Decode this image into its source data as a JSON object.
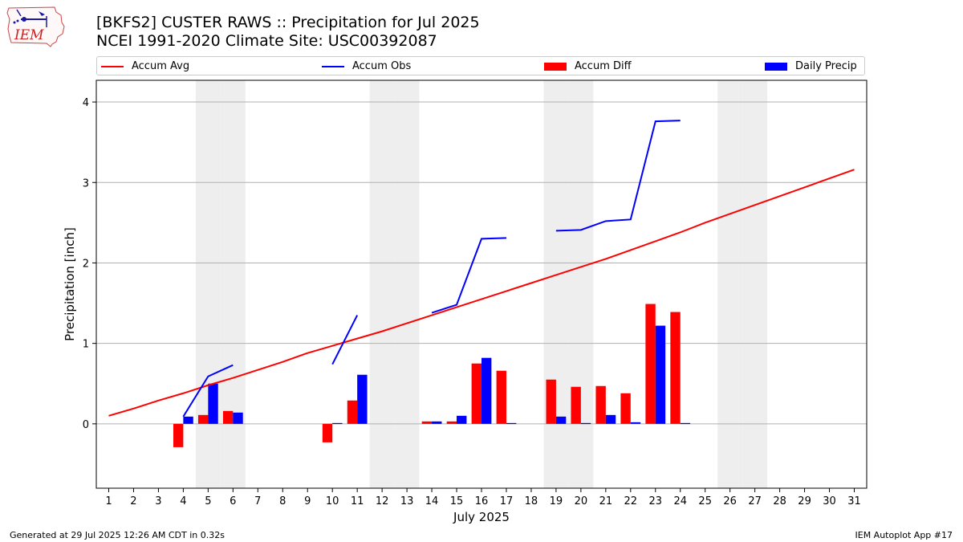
{
  "title_line1": "[BKFS2] CUSTER RAWS :: Precipitation for Jul 2025",
  "title_line2": "NCEI 1991-2020 Climate Site: USC00392087",
  "logo_text": "IEM",
  "legend": {
    "accum_avg": "Accum Avg",
    "accum_obs": "Accum Obs",
    "accum_diff": "Accum Diff",
    "daily_precip": "Daily Precip"
  },
  "colors": {
    "accum_avg": "#ff0000",
    "accum_obs": "#0000ff",
    "accum_diff": "#ff0000",
    "daily_precip": "#0000ff",
    "weekend_shade": "#eeeeee",
    "grid": "#b0b0b0"
  },
  "footer": {
    "left": "Generated at 29 Jul 2025 12:26 AM CDT in 0.32s",
    "right": "IEM Autoplot App #17"
  },
  "chart_data": {
    "type": "bar",
    "title": "[BKFS2] CUSTER RAWS :: Precipitation for Jul 2025",
    "xlabel": "July 2025",
    "ylabel": "Precipitation [inch]",
    "xlim": [
      0.5,
      31.5
    ],
    "ylim": [
      -0.8,
      4.27
    ],
    "yticks": [
      0,
      1,
      2,
      3,
      4
    ],
    "categories": [
      "1",
      "2",
      "3",
      "4",
      "5",
      "6",
      "7",
      "8",
      "9",
      "10",
      "11",
      "12",
      "13",
      "14",
      "15",
      "16",
      "17",
      "18",
      "19",
      "20",
      "21",
      "22",
      "23",
      "24",
      "25",
      "26",
      "27",
      "28",
      "29",
      "30",
      "31"
    ],
    "weekend_days": [
      5,
      6,
      12,
      13,
      19,
      20,
      26,
      27
    ],
    "series": [
      {
        "name": "Accum Avg",
        "type": "line",
        "x": [
          1,
          2,
          3,
          4,
          5,
          6,
          7,
          8,
          9,
          10,
          11,
          12,
          13,
          14,
          15,
          16,
          17,
          18,
          19,
          20,
          21,
          22,
          23,
          24,
          25,
          26,
          27,
          28,
          29,
          30,
          31
        ],
        "values": [
          0.1,
          0.19,
          0.29,
          0.38,
          0.48,
          0.57,
          0.67,
          0.77,
          0.88,
          0.97,
          1.06,
          1.15,
          1.25,
          1.35,
          1.45,
          1.55,
          1.65,
          1.75,
          1.85,
          1.95,
          2.05,
          2.16,
          2.27,
          2.38,
          2.5,
          2.61,
          2.72,
          2.83,
          2.94,
          3.05,
          3.16
        ]
      },
      {
        "name": "Accum Obs",
        "type": "line",
        "segments": [
          {
            "x": [
              4,
              5,
              6
            ],
            "values": [
              0.09,
              0.59,
              0.73
            ]
          },
          {
            "x": [
              10,
              11
            ],
            "values": [
              0.74,
              1.35
            ]
          },
          {
            "x": [
              14,
              15,
              16,
              17
            ],
            "values": [
              1.38,
              1.48,
              2.3,
              2.31
            ]
          },
          {
            "x": [
              19,
              20,
              21,
              22,
              23,
              24
            ],
            "values": [
              2.4,
              2.41,
              2.52,
              2.54,
              3.76,
              3.77
            ]
          }
        ]
      },
      {
        "name": "Accum Diff",
        "type": "bar",
        "x": [
          4,
          5,
          6,
          10,
          11,
          14,
          15,
          16,
          17,
          19,
          20,
          21,
          22,
          23,
          24
        ],
        "values": [
          -0.29,
          0.11,
          0.16,
          -0.23,
          0.29,
          0.03,
          0.03,
          0.75,
          0.66,
          0.55,
          0.46,
          0.47,
          0.38,
          1.49,
          1.39
        ]
      },
      {
        "name": "Daily Precip",
        "type": "bar",
        "x": [
          4,
          5,
          6,
          10,
          11,
          14,
          15,
          16,
          17,
          19,
          20,
          21,
          22,
          23,
          24
        ],
        "values": [
          0.09,
          0.5,
          0.14,
          0.01,
          0.61,
          0.03,
          0.1,
          0.82,
          0.01,
          0.09,
          0.01,
          0.11,
          0.02,
          1.22,
          0.01
        ]
      }
    ],
    "grid": true,
    "legend_position": "top"
  }
}
